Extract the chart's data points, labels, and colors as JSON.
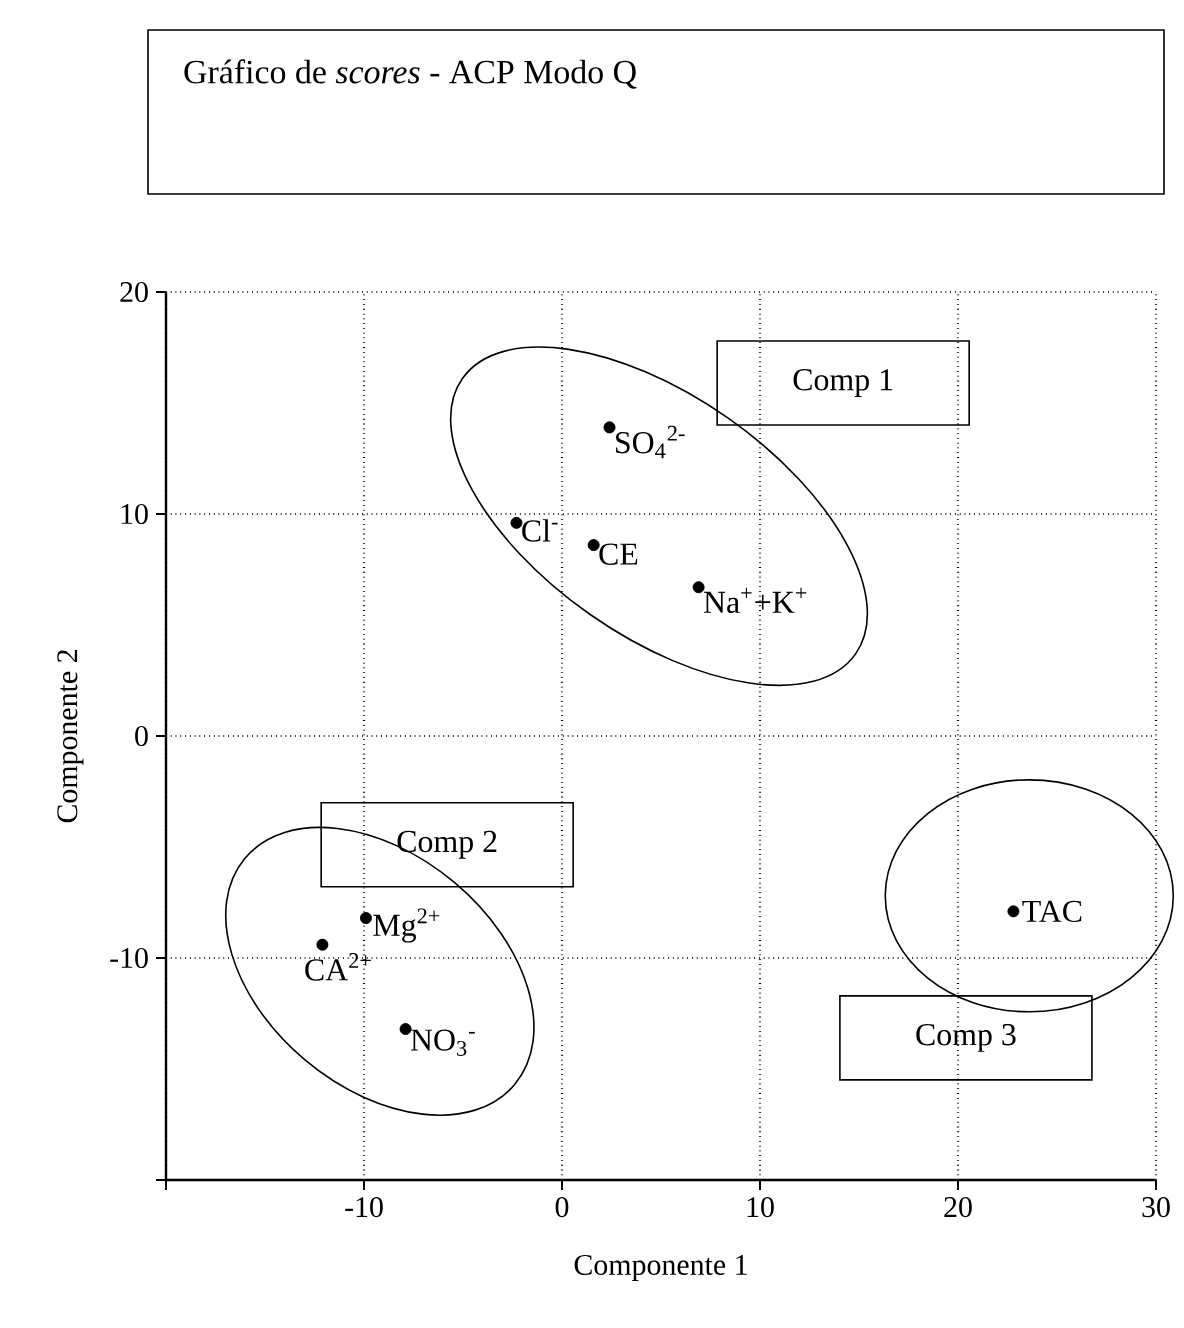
{
  "chart_data": {
    "type": "scatter",
    "title": "Gráfico de *scores* - ACP Modo Q",
    "xlabel": "Componente 1",
    "ylabel": "Componente 2",
    "x": [
      2.4,
      -2.3,
      1.6,
      6.9,
      -9.9,
      -12.1,
      -7.9,
      22.8
    ],
    "series": [
      {
        "color": "#000000",
        "values": [
          13.9,
          9.6,
          8.6,
          6.7,
          -8.2,
          -9.4,
          -13.2,
          -7.9
        ]
      }
    ],
    "marker": "circle",
    "grid": true,
    "xlim": [
      -20,
      30
    ],
    "ylim": [
      -20,
      20
    ],
    "xticks": [
      {
        "value": -20,
        "label": null
      },
      -10,
      0,
      10,
      20,
      30
    ],
    "yticks": [
      {
        "value": -20,
        "label": null
      },
      -10,
      0,
      10,
      20
    ],
    "annotations": [
      {
        "text": "SO$_{4}$$^{2-}$",
        "x": 2.4,
        "y": 13.9
      },
      {
        "text": "Cl$^{-}$",
        "x": -2.3,
        "y": 9.6
      },
      {
        "text": "CE",
        "x": 1.6,
        "y": 8.6
      },
      {
        "text": "Na$^{+}$+K$^{+}$",
        "x": 6.9,
        "y": 6.7
      },
      {
        "text": "Mg$^{2+}$",
        "x": -9.9,
        "y": -8.2
      },
      {
        "text": "CA$^{2+}$",
        "x": -12.1,
        "y": -9.4
      },
      {
        "text": "NO$_{3}$$^{-}$",
        "x": -7.9,
        "y": -13.2
      },
      {
        "text": "TAC",
        "x": 22.8,
        "y": -7.9
      },
      "Comp 1",
      "Comp 2",
      "Comp 3"
    ]
  }
}
